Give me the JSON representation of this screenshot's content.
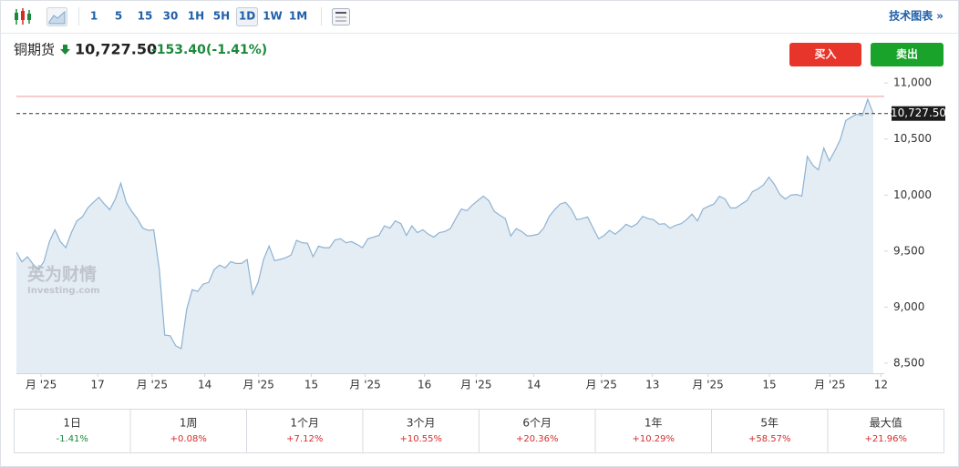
{
  "toolbar": {
    "intervals": [
      "1",
      "5",
      "15",
      "30",
      "1H",
      "5H",
      "1D",
      "1W",
      "1M"
    ],
    "selected_index": 6,
    "link": "技术图表 »"
  },
  "header": {
    "name": "铜期货",
    "price": "10,727.50",
    "change": "-153.40",
    "change_pct": "(-1.41%)",
    "buy": "买入",
    "sell": "卖出"
  },
  "watermark": {
    "brand": "英为财情",
    "site": "Investing.com"
  },
  "chart_data": {
    "type": "area",
    "color": "#8db2d3",
    "fill": "#e4edf4",
    "values": [
      9490,
      9405,
      9450,
      9385,
      9335,
      9405,
      9585,
      9690,
      9585,
      9530,
      9665,
      9770,
      9805,
      9885,
      9935,
      9980,
      9920,
      9870,
      9965,
      10105,
      9935,
      9855,
      9790,
      9705,
      9685,
      9690,
      9340,
      8750,
      8745,
      8655,
      8630,
      8980,
      9155,
      9140,
      9205,
      9220,
      9335,
      9375,
      9350,
      9405,
      9390,
      9390,
      9425,
      9115,
      9220,
      9425,
      9545,
      9415,
      9425,
      9440,
      9465,
      9595,
      9575,
      9570,
      9450,
      9545,
      9530,
      9530,
      9600,
      9610,
      9575,
      9585,
      9560,
      9530,
      9610,
      9625,
      9640,
      9725,
      9705,
      9770,
      9745,
      9640,
      9725,
      9665,
      9690,
      9650,
      9625,
      9665,
      9675,
      9700,
      9790,
      9875,
      9860,
      9910,
      9950,
      9990,
      9950,
      9855,
      9820,
      9790,
      9635,
      9700,
      9675,
      9635,
      9640,
      9650,
      9705,
      9810,
      9870,
      9920,
      9935,
      9875,
      9780,
      9790,
      9805,
      9705,
      9610,
      9640,
      9685,
      9650,
      9690,
      9740,
      9715,
      9745,
      9810,
      9790,
      9780,
      9740,
      9745,
      9705,
      9730,
      9745,
      9780,
      9830,
      9770,
      9875,
      9900,
      9920,
      9990,
      9965,
      9885,
      9885,
      9920,
      9950,
      10030,
      10055,
      10090,
      10160,
      10095,
      10005,
      9965,
      10000,
      10005,
      9990,
      10345,
      10265,
      10225,
      10420,
      10305,
      10395,
      10495,
      10665,
      10695,
      10720,
      10710,
      10855,
      10727.5
    ],
    "xlim": [
      0,
      158
    ],
    "xticks": [
      {
        "value": 4.5,
        "label": "月 '25"
      },
      {
        "value": 14.8,
        "label": "17"
      },
      {
        "value": 24.7,
        "label": "月 '25"
      },
      {
        "value": 34.3,
        "label": "14"
      },
      {
        "value": 44.1,
        "label": "月 '25"
      },
      {
        "value": 53.7,
        "label": "15"
      },
      {
        "value": 63.5,
        "label": "月 '25"
      },
      {
        "value": 74.3,
        "label": "16"
      },
      {
        "value": 83.7,
        "label": "月 '25"
      },
      {
        "value": 94.2,
        "label": "14"
      },
      {
        "value": 106.5,
        "label": "月 '25"
      },
      {
        "value": 115.8,
        "label": "13"
      },
      {
        "value": 125.9,
        "label": "月 '25"
      },
      {
        "value": 137.1,
        "label": "15"
      },
      {
        "value": 148.1,
        "label": "月 '25"
      },
      {
        "value": 157.4,
        "label": "12"
      }
    ],
    "ylim": [
      8410,
      11050
    ],
    "yticks": [
      {
        "value": 8500,
        "label": "8,500"
      },
      {
        "value": 9000,
        "label": "9,000"
      },
      {
        "value": 9500,
        "label": "9,500"
      },
      {
        "value": 10000,
        "label": "10,000"
      },
      {
        "value": 10500,
        "label": "10,500"
      },
      {
        "value": 11000,
        "label": "11,000"
      }
    ],
    "last_price": {
      "value": 10727.5,
      "label": "10,727.50"
    },
    "prev_close": 10880.9,
    "prev_close_color": "#f2b9b9"
  },
  "performance": [
    {
      "period": "1日",
      "change": "-1.41%",
      "color": "#1a8a3a"
    },
    {
      "period": "1周",
      "change": "+0.08%",
      "color": "#d62b2b"
    },
    {
      "period": "1个月",
      "change": "+7.12%",
      "color": "#d62b2b"
    },
    {
      "period": "3个月",
      "change": "+10.55%",
      "color": "#d62b2b"
    },
    {
      "period": "6个月",
      "change": "+20.36%",
      "color": "#d62b2b"
    },
    {
      "period": "1年",
      "change": "+10.29%",
      "color": "#d62b2b"
    },
    {
      "period": "5年",
      "change": "+58.57%",
      "color": "#d62b2b"
    },
    {
      "period": "最大值",
      "change": "+21.96%",
      "color": "#d62b2b"
    }
  ]
}
